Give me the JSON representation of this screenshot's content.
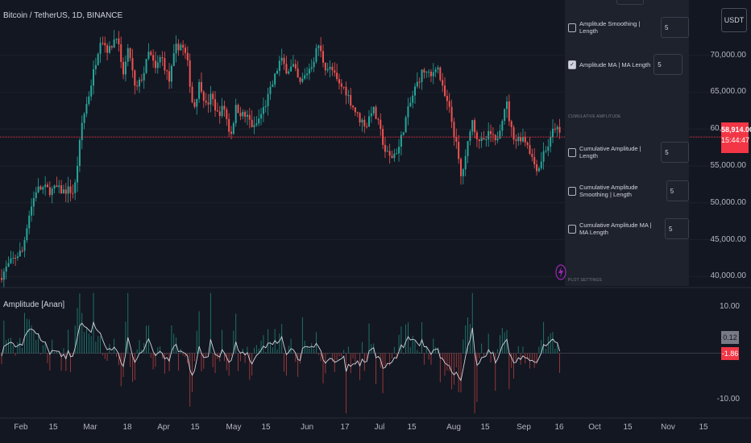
{
  "chart_title": "Bitcoin / TetherUS, 1D, BINANCE",
  "currency_button": "USDT",
  "oscillator_title": "Amplitude [Anan]",
  "price_axis": [
    "70,000.00",
    "65,000.00",
    "60,000.00",
    "55,000.00",
    "50,000.00",
    "45,000.00",
    "40,000.00"
  ],
  "osc_axis": [
    "10.00",
    "-10.00"
  ],
  "time_axis": [
    "Feb",
    "15",
    "Mar",
    "18",
    "Apr",
    "15",
    "May",
    "15",
    "Jun",
    "17",
    "Jul",
    "15",
    "Aug",
    "15",
    "Sep",
    "16",
    "Oct",
    "15",
    "Nov",
    "15"
  ],
  "price_tag": {
    "price": "58,914.00",
    "countdown": "15:44:47"
  },
  "amp_value": "0.12",
  "amp_ma_value": "-1.86",
  "settings": {
    "rows": [
      {
        "label": "Amplitude Smoothing  | Length",
        "value": "5",
        "checked": false
      },
      {
        "label": "Amplitude MA  | MA Length",
        "value": "5",
        "checked": true
      }
    ],
    "cumulative_header": "CUMULATIVE AMPLITUDE",
    "cumulative_rows": [
      {
        "label": "Cumulative Amplitude  | Length",
        "value": "5",
        "checked": false
      },
      {
        "label": "Cumulative Amplitude Smoothing  | Length",
        "value": "5",
        "checked": false
      },
      {
        "label": "Cumulative Amplitude MA  | MA Length",
        "value": "5",
        "checked": false
      }
    ],
    "plot_header": "PLOT SETTINGS"
  },
  "colors": {
    "bg": "#131722",
    "up": "#26a69a",
    "down": "#ef5350",
    "grid": "#1e222d",
    "price_line": "#f23645",
    "panel": "#1e222d"
  },
  "chart_data": [
    {
      "type": "candlestick",
      "title": "Bitcoin / TetherUS, 1D, BINANCE",
      "ylim": [
        38500,
        77500
      ],
      "last_price": 58914,
      "ytick_values": [
        70000,
        65000,
        60000,
        55000,
        50000,
        45000,
        40000
      ],
      "x_categories": [
        "Feb",
        "15",
        "Mar",
        "18",
        "Apr",
        "15",
        "May",
        "15",
        "Jun",
        "17",
        "Jul",
        "15",
        "Aug",
        "15",
        "Sep",
        "16",
        "Oct",
        "15",
        "Nov",
        "15"
      ],
      "close_path": [
        [
          0,
          39800
        ],
        [
          10,
          41500
        ],
        [
          20,
          42800
        ],
        [
          28,
          43500
        ],
        [
          35,
          48000
        ],
        [
          45,
          51800
        ],
        [
          55,
          52000
        ],
        [
          63,
          51600
        ],
        [
          70,
          52000
        ],
        [
          78,
          51500
        ],
        [
          85,
          51800
        ],
        [
          92,
          51300
        ],
        [
          102,
          61000
        ],
        [
          110,
          64500
        ],
        [
          118,
          68800
        ],
        [
          125,
          72500
        ],
        [
          135,
          70500
        ],
        [
          145,
          73000
        ],
        [
          152,
          67000
        ],
        [
          160,
          71000
        ],
        [
          168,
          65000
        ],
        [
          178,
          67500
        ],
        [
          185,
          70500
        ],
        [
          193,
          68000
        ],
        [
          200,
          70000
        ],
        [
          210,
          66500
        ],
        [
          218,
          71000
        ],
        [
          225,
          71500
        ],
        [
          232,
          69500
        ],
        [
          240,
          62500
        ],
        [
          248,
          66500
        ],
        [
          256,
          63000
        ],
        [
          262,
          64500
        ],
        [
          270,
          62000
        ],
        [
          278,
          63000
        ],
        [
          286,
          59000
        ],
        [
          293,
          63000
        ],
        [
          300,
          62000
        ],
        [
          308,
          61500
        ],
        [
          315,
          60000
        ],
        [
          322,
          61500
        ],
        [
          330,
          63500
        ],
        [
          338,
          66000
        ],
        [
          348,
          69500
        ],
        [
          356,
          68000
        ],
        [
          364,
          68500
        ],
        [
          372,
          66000
        ],
        [
          380,
          67500
        ],
        [
          388,
          69000
        ],
        [
          395,
          71500
        ],
        [
          403,
          68500
        ],
        [
          412,
          68000
        ],
        [
          420,
          66000
        ],
        [
          428,
          65500
        ],
        [
          436,
          63500
        ],
        [
          445,
          61500
        ],
        [
          455,
          60500
        ],
        [
          462,
          63000
        ],
        [
          470,
          60500
        ],
        [
          478,
          57000
        ],
        [
          485,
          56000
        ],
        [
          495,
          57500
        ],
        [
          505,
          62000
        ],
        [
          515,
          65500
        ],
        [
          525,
          68000
        ],
        [
          535,
          67000
        ],
        [
          542,
          69000
        ],
        [
          550,
          65000
        ],
        [
          558,
          62500
        ],
        [
          566,
          58000
        ],
        [
          572,
          53500
        ],
        [
          578,
          56000
        ],
        [
          585,
          61500
        ],
        [
          592,
          59000
        ],
        [
          600,
          58000
        ],
        [
          608,
          59500
        ],
        [
          615,
          58000
        ],
        [
          622,
          61000
        ],
        [
          628,
          64000
        ],
        [
          634,
          60000
        ],
        [
          640,
          58500
        ],
        [
          648,
          59000
        ],
        [
          655,
          58000
        ],
        [
          662,
          55500
        ],
        [
          668,
          54500
        ],
        [
          675,
          57000
        ],
        [
          682,
          58000
        ],
        [
          688,
          60500
        ],
        [
          696,
          59000
        ]
      ]
    },
    {
      "type": "bar+line",
      "title": "Amplitude [Anan]",
      "ylim": [
        -14,
        14
      ],
      "ytick_values": [
        10,
        -10
      ],
      "last_amplitude": 0.12,
      "last_ma": -1.86
    }
  ]
}
